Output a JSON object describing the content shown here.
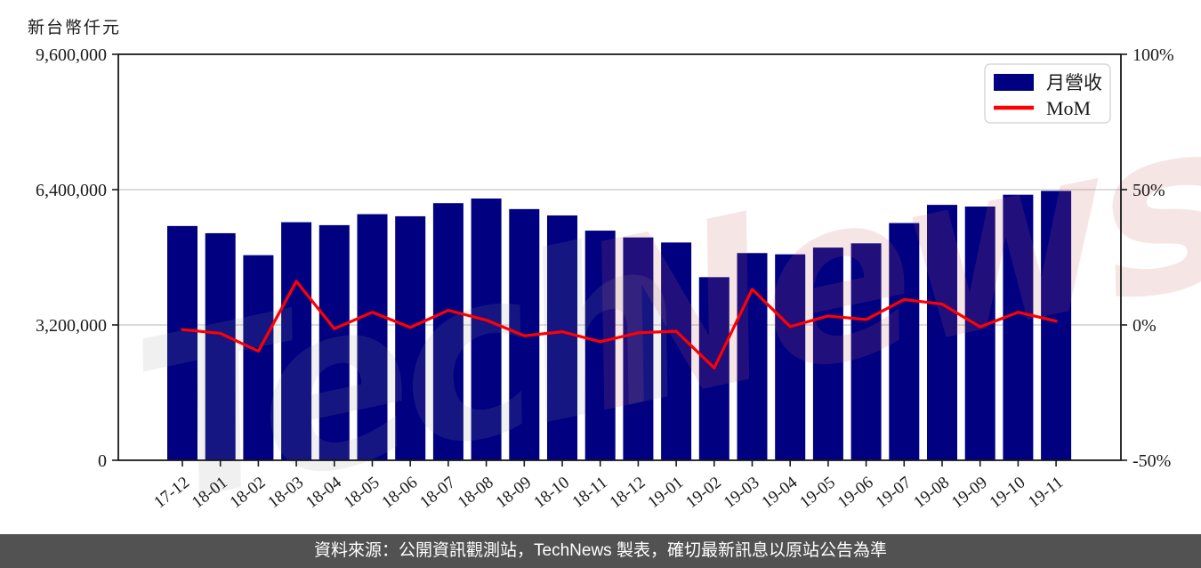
{
  "header": {
    "unit_label": "新台幣仟元"
  },
  "footer": {
    "text": "資料來源：公開資訊觀測站，TechNews 製表，確切最新訊息以原站公告為準"
  },
  "watermark": {
    "text_left": "Tech",
    "text_right": "News",
    "color_left": "#999999",
    "color_right": "#cc6666"
  },
  "legend": {
    "bar_label": "月營收",
    "line_label": "MoM"
  },
  "chart_data": {
    "type": "bar",
    "title": "",
    "categories": [
      "17-12",
      "18-01",
      "18-02",
      "18-03",
      "18-04",
      "18-05",
      "18-06",
      "18-07",
      "18-08",
      "18-09",
      "18-10",
      "18-11",
      "18-12",
      "19-01",
      "19-02",
      "19-03",
      "19-04",
      "19-05",
      "19-06",
      "19-07",
      "19-08",
      "19-09",
      "19-10",
      "19-11"
    ],
    "series": [
      {
        "name": "月營收",
        "type": "bar",
        "axis": "left",
        "color": "#000080",
        "values": [
          5540000,
          5370000,
          4850000,
          5630000,
          5560000,
          5820000,
          5770000,
          6080000,
          6190000,
          5940000,
          5790000,
          5430000,
          5270000,
          5150000,
          4330000,
          4900000,
          4870000,
          5030000,
          5130000,
          5610000,
          6040000,
          6000000,
          6280000,
          6370000
        ]
      },
      {
        "name": "MoM",
        "type": "line",
        "axis": "right",
        "color": "#ff0000",
        "values": [
          -1.7,
          -3.1,
          -9.7,
          16.1,
          -1.4,
          4.7,
          -0.9,
          5.4,
          1.8,
          -4.0,
          -2.5,
          -6.2,
          -2.9,
          -2.3,
          -15.9,
          13.2,
          -0.6,
          3.3,
          2.0,
          9.4,
          7.7,
          -0.7,
          4.7,
          1.4
        ]
      }
    ],
    "left_axis": {
      "label": "新台幣仟元",
      "tick_values": [
        0,
        3200000,
        6400000,
        9600000
      ],
      "tick_labels": [
        "0",
        "3,200,000",
        "6,400,000",
        "9,600,000"
      ],
      "range": [
        0,
        9600000
      ]
    },
    "right_axis": {
      "tick_values": [
        -50,
        0,
        50,
        100
      ],
      "tick_labels": [
        "-50%",
        "0%",
        "50%",
        "100%"
      ],
      "range": [
        -50,
        100
      ]
    },
    "grid": "horizontal",
    "legend_position": "top-right"
  }
}
